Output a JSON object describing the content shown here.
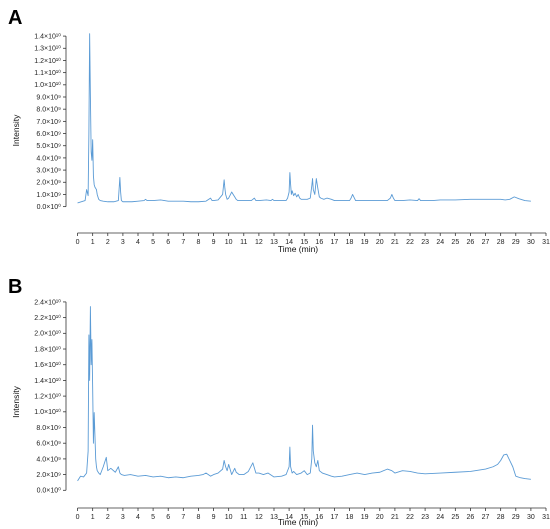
{
  "colors": {
    "trace": "#5b9bd5",
    "axis": "#333333"
  },
  "chart_data": [
    {
      "type": "line",
      "panel_label": "A",
      "xlabel": "Time (min)",
      "ylabel": "Intensity",
      "xlim": [
        -0.5,
        31
      ],
      "ylim": [
        -0.2,
        1.45
      ],
      "y_unit_power": 10,
      "xticks": [
        0,
        1,
        2,
        3,
        4,
        5,
        6,
        7,
        8,
        9,
        10,
        11,
        12,
        13,
        14,
        15,
        16,
        17,
        18,
        19,
        20,
        21,
        22,
        23,
        24,
        25,
        26,
        27,
        28,
        29,
        30,
        31
      ],
      "yticks": [
        {
          "v": 0.0,
          "label": "0.0×10⁰"
        },
        {
          "v": 0.1,
          "label": "1.0×10⁹"
        },
        {
          "v": 0.2,
          "label": "2.0×10⁹"
        },
        {
          "v": 0.3,
          "label": "3.0×10⁹"
        },
        {
          "v": 0.4,
          "label": "4.0×10⁹"
        },
        {
          "v": 0.5,
          "label": "5.0×10⁹"
        },
        {
          "v": 0.6,
          "label": "6.0×10⁹"
        },
        {
          "v": 0.7,
          "label": "7.0×10⁹"
        },
        {
          "v": 0.8,
          "label": "8.0×10⁹"
        },
        {
          "v": 0.9,
          "label": "9.0×10⁹"
        },
        {
          "v": 1.0,
          "label": "1.0×10¹⁰"
        },
        {
          "v": 1.1,
          "label": "1.1×10¹⁰"
        },
        {
          "v": 1.2,
          "label": "1.2×10¹⁰"
        },
        {
          "v": 1.3,
          "label": "1.3×10¹⁰"
        },
        {
          "v": 1.4,
          "label": "1.4×10¹⁰"
        }
      ],
      "series": [
        {
          "x": [
            0.0,
            0.5,
            0.6,
            0.7,
            0.75,
            0.8,
            0.85,
            0.9,
            0.95,
            1.0,
            1.05,
            1.1,
            1.15,
            1.2,
            1.25,
            1.3,
            1.4,
            1.5,
            1.7,
            2.0,
            2.4,
            2.7,
            2.8,
            2.85,
            2.9,
            3.0,
            3.3,
            3.6,
            4.0,
            4.4,
            4.5,
            4.6,
            5.0,
            5.5,
            6.0,
            6.5,
            7.0,
            7.5,
            8.0,
            8.5,
            8.8,
            8.9,
            9.0,
            9.3,
            9.6,
            9.7,
            9.75,
            9.8,
            9.9,
            10.0,
            10.2,
            10.3,
            10.4,
            10.5,
            10.6,
            11.0,
            11.5,
            11.7,
            11.8,
            12.0,
            12.5,
            12.8,
            12.9,
            13.0,
            13.5,
            13.8,
            13.9,
            14.0,
            14.05,
            14.1,
            14.15,
            14.2,
            14.3,
            14.4,
            14.5,
            14.6,
            14.7,
            14.8,
            14.9,
            15.0,
            15.2,
            15.4,
            15.5,
            15.55,
            15.6,
            15.7,
            15.8,
            15.9,
            16.0,
            16.1,
            16.3,
            16.5,
            16.8,
            17.0,
            17.5,
            18.0,
            18.1,
            18.2,
            18.4,
            18.6,
            19.0,
            19.5,
            20.0,
            20.5,
            20.7,
            20.8,
            20.9,
            21.0,
            21.5,
            22.0,
            22.5,
            22.6,
            22.7,
            23.0,
            23.5,
            24.0,
            25.0,
            26.0,
            27.0,
            28.0,
            28.3,
            28.6,
            28.9,
            29.2,
            29.6,
            30.0
          ],
          "y": [
            0.03,
            0.05,
            0.14,
            0.09,
            0.6,
            1.42,
            0.9,
            0.45,
            0.38,
            0.55,
            0.25,
            0.18,
            0.16,
            0.15,
            0.14,
            0.1,
            0.06,
            0.05,
            0.045,
            0.04,
            0.04,
            0.05,
            0.24,
            0.12,
            0.05,
            0.04,
            0.04,
            0.04,
            0.045,
            0.05,
            0.06,
            0.05,
            0.05,
            0.055,
            0.045,
            0.045,
            0.045,
            0.04,
            0.04,
            0.045,
            0.07,
            0.05,
            0.05,
            0.055,
            0.1,
            0.22,
            0.15,
            0.1,
            0.06,
            0.07,
            0.12,
            0.1,
            0.08,
            0.06,
            0.05,
            0.05,
            0.05,
            0.07,
            0.05,
            0.05,
            0.055,
            0.05,
            0.06,
            0.05,
            0.05,
            0.05,
            0.07,
            0.12,
            0.28,
            0.18,
            0.1,
            0.13,
            0.09,
            0.11,
            0.08,
            0.1,
            0.07,
            0.06,
            0.06,
            0.06,
            0.06,
            0.07,
            0.17,
            0.23,
            0.14,
            0.1,
            0.23,
            0.15,
            0.08,
            0.07,
            0.06,
            0.07,
            0.06,
            0.05,
            0.05,
            0.05,
            0.07,
            0.1,
            0.05,
            0.05,
            0.05,
            0.05,
            0.05,
            0.05,
            0.07,
            0.1,
            0.07,
            0.05,
            0.05,
            0.055,
            0.05,
            0.065,
            0.05,
            0.05,
            0.05,
            0.055,
            0.055,
            0.06,
            0.06,
            0.06,
            0.055,
            0.06,
            0.08,
            0.065,
            0.05,
            0.045
          ]
        }
      ]
    },
    {
      "type": "line",
      "panel_label": "B",
      "xlabel": "Time (min)",
      "ylabel": "Intensity",
      "xlim": [
        -0.5,
        31
      ],
      "ylim": [
        -0.2,
        2.45
      ],
      "y_unit_power": 10,
      "xticks": [
        0,
        1,
        2,
        3,
        4,
        5,
        6,
        7,
        8,
        9,
        10,
        11,
        12,
        13,
        14,
        15,
        16,
        17,
        18,
        19,
        20,
        21,
        22,
        23,
        24,
        25,
        26,
        27,
        28,
        29,
        30,
        31
      ],
      "yticks": [
        {
          "v": 0.0,
          "label": "0.0×10⁰"
        },
        {
          "v": 0.2,
          "label": "2.0×10⁹"
        },
        {
          "v": 0.4,
          "label": "4.0×10⁹"
        },
        {
          "v": 0.6,
          "label": "6.0×10⁹"
        },
        {
          "v": 0.8,
          "label": "8.0×10⁹"
        },
        {
          "v": 1.0,
          "label": "1.0×10¹⁰"
        },
        {
          "v": 1.2,
          "label": "1.2×10¹⁰"
        },
        {
          "v": 1.4,
          "label": "1.4×10¹⁰"
        },
        {
          "v": 1.6,
          "label": "1.6×10¹⁰"
        },
        {
          "v": 1.8,
          "label": "1.8×10¹⁰"
        },
        {
          "v": 2.0,
          "label": "2.0×10¹⁰"
        },
        {
          "v": 2.2,
          "label": "2.2×10¹⁰"
        },
        {
          "v": 2.4,
          "label": "2.4×10¹⁰"
        }
      ],
      "series": [
        {
          "x": [
            0.0,
            0.2,
            0.4,
            0.6,
            0.7,
            0.75,
            0.8,
            0.85,
            0.9,
            0.95,
            1.0,
            1.05,
            1.1,
            1.15,
            1.2,
            1.25,
            1.3,
            1.4,
            1.5,
            1.7,
            1.9,
            2.0,
            2.2,
            2.5,
            2.7,
            2.8,
            2.9,
            3.1,
            3.5,
            4.0,
            4.5,
            5.0,
            5.5,
            6.0,
            6.5,
            7.0,
            7.5,
            8.0,
            8.3,
            8.5,
            8.8,
            9.0,
            9.3,
            9.6,
            9.7,
            9.8,
            9.9,
            10.0,
            10.2,
            10.4,
            10.5,
            10.7,
            11.0,
            11.3,
            11.6,
            11.8,
            12.0,
            12.3,
            12.6,
            13.0,
            13.5,
            13.8,
            14.0,
            14.05,
            14.1,
            14.2,
            14.3,
            14.5,
            14.8,
            15.0,
            15.2,
            15.4,
            15.5,
            15.55,
            15.6,
            15.7,
            15.8,
            15.9,
            16.0,
            16.2,
            16.5,
            16.8,
            17.0,
            17.5,
            18.0,
            18.5,
            19.0,
            19.5,
            20.0,
            20.5,
            20.8,
            21.0,
            21.5,
            22.0,
            22.5,
            23.0,
            24.0,
            25.0,
            26.0,
            27.0,
            27.5,
            27.8,
            28.0,
            28.2,
            28.4,
            28.6,
            28.8,
            29.0,
            29.3,
            29.6,
            30.0
          ],
          "y": [
            0.12,
            0.18,
            0.17,
            0.22,
            0.5,
            1.98,
            1.4,
            2.34,
            1.6,
            1.92,
            1.3,
            0.6,
            0.99,
            0.7,
            0.4,
            0.3,
            0.25,
            0.22,
            0.2,
            0.3,
            0.42,
            0.25,
            0.28,
            0.23,
            0.3,
            0.22,
            0.2,
            0.19,
            0.2,
            0.18,
            0.19,
            0.17,
            0.18,
            0.16,
            0.17,
            0.16,
            0.18,
            0.19,
            0.2,
            0.22,
            0.18,
            0.2,
            0.22,
            0.27,
            0.38,
            0.3,
            0.25,
            0.33,
            0.2,
            0.28,
            0.23,
            0.2,
            0.2,
            0.24,
            0.35,
            0.22,
            0.22,
            0.2,
            0.22,
            0.17,
            0.18,
            0.2,
            0.3,
            0.55,
            0.3,
            0.22,
            0.24,
            0.2,
            0.22,
            0.25,
            0.2,
            0.22,
            0.4,
            0.83,
            0.5,
            0.35,
            0.3,
            0.38,
            0.25,
            0.22,
            0.2,
            0.18,
            0.17,
            0.18,
            0.2,
            0.22,
            0.2,
            0.22,
            0.23,
            0.27,
            0.25,
            0.22,
            0.25,
            0.24,
            0.22,
            0.21,
            0.22,
            0.23,
            0.24,
            0.27,
            0.3,
            0.33,
            0.38,
            0.45,
            0.46,
            0.38,
            0.3,
            0.18,
            0.16,
            0.15,
            0.14
          ]
        }
      ]
    }
  ]
}
